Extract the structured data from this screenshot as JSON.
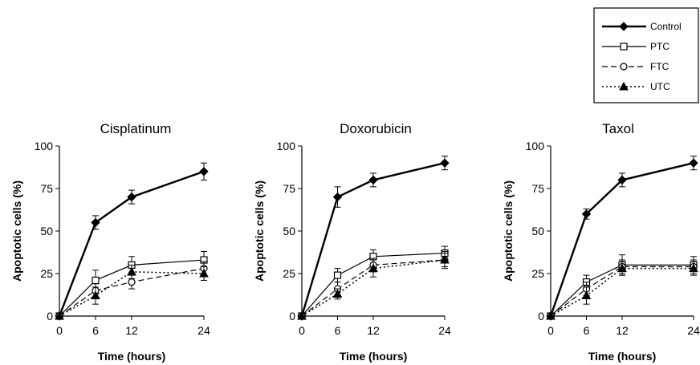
{
  "legend": {
    "items": [
      {
        "label": "Control",
        "series": 0
      },
      {
        "label": "PTC",
        "series": 1
      },
      {
        "label": "FTC",
        "series": 2
      },
      {
        "label": "UTC",
        "series": 3
      }
    ]
  },
  "styles": [
    {
      "color": "#000000",
      "dash": "",
      "marker": "diamond",
      "fill": "#000000",
      "width": 2.4
    },
    {
      "color": "#000000",
      "dash": "",
      "marker": "square",
      "fill": "#ffffff",
      "width": 1.2
    },
    {
      "color": "#000000",
      "dash": "7,4",
      "marker": "circle",
      "fill": "#ffffff",
      "width": 1.2
    },
    {
      "color": "#000000",
      "dash": "2,3",
      "marker": "triangle",
      "fill": "#000000",
      "width": 1.6
    }
  ],
  "chart_data": [
    {
      "type": "line",
      "title": "Cisplatinum",
      "xlabel": "Time (hours)",
      "ylabel": "Apoptotic cells (%)",
      "x": [
        0,
        6,
        12,
        24
      ],
      "xticks": [
        "0",
        "6",
        "12",
        "24"
      ],
      "yticks": [
        "0",
        "25",
        "50",
        "75",
        "100"
      ],
      "xlim": [
        0,
        24
      ],
      "ylim": [
        0,
        100
      ],
      "series": [
        {
          "name": "Control",
          "values": [
            0,
            55,
            70,
            85
          ],
          "err": [
            0,
            4,
            4,
            5
          ]
        },
        {
          "name": "PTC",
          "values": [
            0,
            21,
            30,
            33
          ],
          "err": [
            0,
            6,
            5,
            5
          ]
        },
        {
          "name": "FTC",
          "values": [
            0,
            15,
            20,
            28
          ],
          "err": [
            0,
            4,
            4,
            4
          ]
        },
        {
          "name": "UTC",
          "values": [
            0,
            12,
            26,
            25
          ],
          "err": [
            0,
            5,
            4,
            4
          ]
        }
      ]
    },
    {
      "type": "line",
      "title": "Doxorubicin",
      "xlabel": "Time (hours)",
      "ylabel": "Apoptotic cells (%)",
      "x": [
        0,
        6,
        12,
        24
      ],
      "xticks": [
        "0",
        "6",
        "12",
        "24"
      ],
      "yticks": [
        "0",
        "25",
        "50",
        "75",
        "100"
      ],
      "xlim": [
        0,
        24
      ],
      "ylim": [
        0,
        100
      ],
      "series": [
        {
          "name": "Control",
          "values": [
            0,
            70,
            80,
            90
          ],
          "err": [
            0,
            6,
            4,
            4
          ]
        },
        {
          "name": "PTC",
          "values": [
            0,
            24,
            35,
            37
          ],
          "err": [
            0,
            4,
            4,
            4
          ]
        },
        {
          "name": "FTC",
          "values": [
            0,
            16,
            30,
            33
          ],
          "err": [
            0,
            4,
            4,
            4
          ]
        },
        {
          "name": "UTC",
          "values": [
            0,
            13,
            28,
            33
          ],
          "err": [
            0,
            3,
            5,
            5
          ]
        }
      ]
    },
    {
      "type": "line",
      "title": "Taxol",
      "xlabel": "Time (hours)",
      "ylabel": "Apoptotic cells (%)",
      "x": [
        0,
        6,
        12,
        24
      ],
      "xticks": [
        "0",
        "6",
        "12",
        "24"
      ],
      "yticks": [
        "0",
        "25",
        "50",
        "75",
        "100"
      ],
      "xlim": [
        0,
        24
      ],
      "ylim": [
        0,
        100
      ],
      "series": [
        {
          "name": "Control",
          "values": [
            0,
            60,
            80,
            90
          ],
          "err": [
            0,
            3,
            4,
            4
          ]
        },
        {
          "name": "PTC",
          "values": [
            0,
            20,
            30,
            30
          ],
          "err": [
            0,
            4,
            6,
            5
          ]
        },
        {
          "name": "FTC",
          "values": [
            0,
            16,
            29,
            29
          ],
          "err": [
            0,
            4,
            4,
            4
          ]
        },
        {
          "name": "UTC",
          "values": [
            0,
            12,
            28,
            28
          ],
          "err": [
            0,
            5,
            4,
            4
          ]
        }
      ]
    }
  ]
}
